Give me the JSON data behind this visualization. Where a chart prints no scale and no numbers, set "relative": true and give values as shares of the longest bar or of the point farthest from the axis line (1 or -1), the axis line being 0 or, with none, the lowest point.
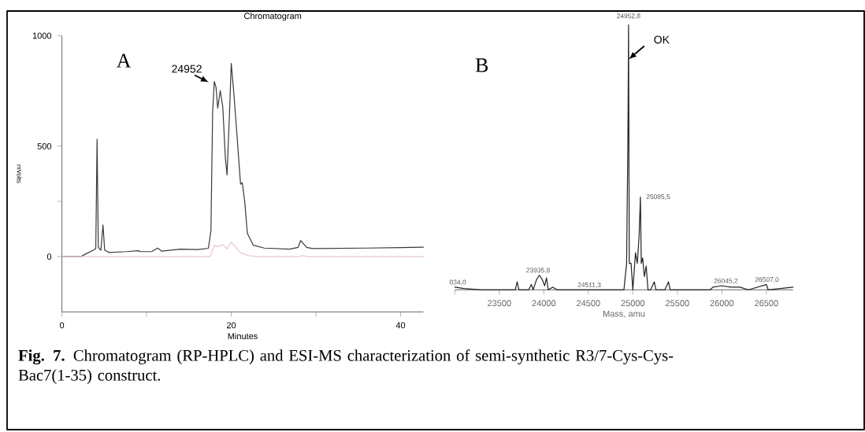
{
  "chart_data": [
    {
      "type": "line",
      "title": "Chromatogram",
      "xlabel": "Minutes",
      "ylabel": "mVolts",
      "xlim": [
        0,
        42.7
      ],
      "ylim": [
        -250,
        1000
      ],
      "xticks": [
        0,
        {
          "value": 10,
          "label": null
        },
        20,
        {
          "value": 30,
          "label": null
        },
        40
      ],
      "yticks": [
        0,
        {
          "value": 250,
          "label": null
        },
        500,
        1000
      ],
      "series": [
        {
          "color": "#3a3a3a",
          "x": [
            0,
            2.2,
            2.7,
            3.7,
            4.0,
            4.15,
            4.3,
            4.6,
            4.85,
            5.05,
            5.6,
            7.6,
            9.0,
            9.3,
            10.6,
            11.3,
            11.8,
            14.0,
            16.0,
            17.3,
            17.6,
            17.8,
            18.0,
            18.2,
            18.4,
            18.7,
            19.0,
            19.3,
            19.5,
            19.8,
            20.0,
            20.3,
            20.6,
            21.1,
            21.3,
            21.6,
            21.9,
            22.6,
            23.9,
            26.9,
            27.9,
            28.2,
            28.9,
            29.6,
            35.9,
            42.7
          ],
          "values": [
            0,
            0,
            10,
            29,
            36,
            532,
            42,
            29,
            144,
            29,
            19,
            23,
            27,
            23,
            23,
            39,
            25,
            34,
            32,
            38,
            118,
            653,
            793,
            767,
            672,
            752,
            678,
            449,
            370,
            653,
            875,
            742,
            589,
            328,
            335,
            246,
            106,
            52,
            39,
            34,
            42,
            73,
            42,
            37,
            39,
            43
          ]
        },
        {
          "color": "#e8c6ca",
          "x": [
            0,
            17.5,
            18.0,
            18.5,
            19.0,
            19.5,
            20.0,
            20.5,
            21.0,
            22.0,
            23.0,
            28.0,
            28.5,
            29.0,
            42.7
          ],
          "values": [
            0,
            0,
            50,
            45,
            55,
            35,
            65,
            45,
            20,
            5,
            0,
            0,
            5,
            0,
            0
          ]
        }
      ],
      "annotations": [
        "A",
        {
          "text": "24952",
          "x": 18,
          "y": 793
        }
      ]
    },
    {
      "type": "line",
      "relative": true,
      "tick_labels": "x",
      "xlabel": "Mass, amu",
      "xlim": [
        23000,
        26800
      ],
      "xticks": [
        {
          "value": 23000,
          "label": null
        },
        23500,
        24000,
        24500,
        25000,
        25500,
        26000,
        26500
      ],
      "series": [
        {
          "color": "#222222",
          "x": [
            23000,
            23100,
            23300,
            23680,
            23700,
            23720,
            23830,
            23860,
            23880,
            23920,
            23950,
            23980,
            24010,
            24030,
            24050,
            24100,
            24150,
            24900,
            24930,
            24945,
            24952,
            24960,
            24980,
            25000,
            25030,
            25050,
            25070,
            25085,
            25095,
            25110,
            25130,
            25150,
            25170,
            25200,
            25240,
            25260,
            25360,
            25400,
            25420,
            25870,
            25900,
            26000,
            26100,
            26200,
            26300,
            26500,
            26520,
            26800
          ],
          "values": [
            0.01,
            0.005,
            0,
            0,
            0.03,
            0,
            0,
            0.02,
            0,
            0.04,
            0.055,
            0.04,
            0.015,
            0.045,
            0,
            0.01,
            0,
            0,
            0.1,
            0.58,
            1.0,
            0.1,
            0.1,
            0,
            0.14,
            0.1,
            0.2,
            0.35,
            0.1,
            0.12,
            0.05,
            0.09,
            0,
            0,
            0.03,
            0,
            0,
            0.03,
            0,
            0,
            0.01,
            0.015,
            0.01,
            0.01,
            0,
            0.02,
            0,
            0.01
          ]
        }
      ],
      "annotations": [
        "B",
        {
          "text": "OK",
          "x": 24952,
          "y": 0.87
        },
        {
          "text": "24952,8",
          "x": 24952,
          "y": 1.0
        },
        {
          "text": "25085,5",
          "x": 25085,
          "y": 0.35
        },
        {
          "text": "23935,8",
          "x": 23935,
          "y": 0.055
        },
        {
          "text": "24511,3",
          "x": 24511,
          "y": 0
        },
        {
          "text": "26045,2",
          "x": 26045,
          "y": 0.015
        },
        {
          "text": "26507,0",
          "x": 26507,
          "y": 0.02
        },
        {
          "text": "034,0",
          "x": 23034,
          "y": 0.01
        },
        "**Fig. 7.** Chromatogram (RP-HPLC) and ESI-MS characterization of semi-synthetic R3/7-Cys-Cys-Bac7(1-35) construct."
      ]
    }
  ]
}
